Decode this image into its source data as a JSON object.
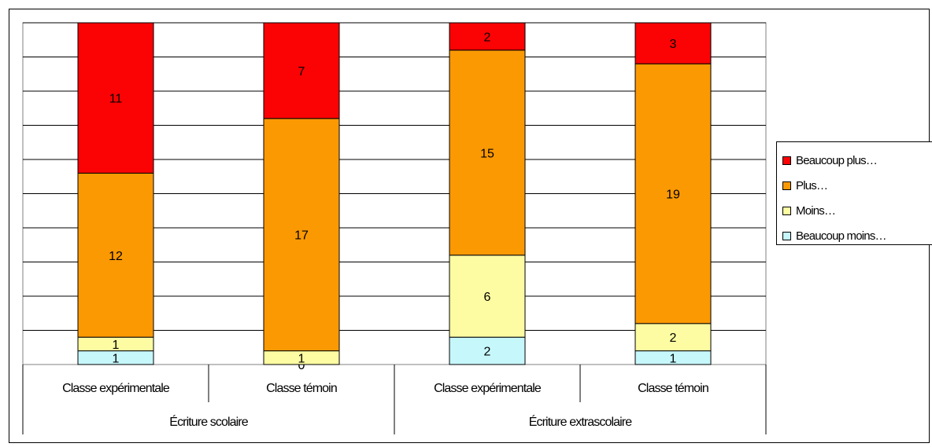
{
  "chart_data": {
    "type": "bar",
    "stacked": true,
    "percent_stacked": true,
    "groups": [
      {
        "label": "Écriture scolaire",
        "categories": [
          "Classe expérimentale",
          "Classe témoin"
        ]
      },
      {
        "label": "Écriture extrascolaire",
        "categories": [
          "Classe expérimentale",
          "Classe témoin"
        ]
      }
    ],
    "categories": [
      "Classe expérimentale",
      "Classe témoin",
      "Classe expérimentale",
      "Classe témoin"
    ],
    "series": [
      {
        "name": "Beaucoup moins…",
        "values": [
          1,
          0,
          2,
          1
        ],
        "color": "#c6f7fb"
      },
      {
        "name": "Moins…",
        "values": [
          1,
          1,
          6,
          2
        ],
        "color": "#fdfca2"
      },
      {
        "name": "Plus…",
        "values": [
          12,
          17,
          15,
          19
        ],
        "color": "#fb9903"
      },
      {
        "name": "Beaucoup plus…",
        "values": [
          11,
          7,
          2,
          3
        ],
        "color": "#fb0204"
      }
    ],
    "legend_order": [
      "Beaucoup plus…",
      "Plus…",
      "Moins…",
      "Beaucoup moins…"
    ],
    "grid": true,
    "legend_position": "right"
  }
}
